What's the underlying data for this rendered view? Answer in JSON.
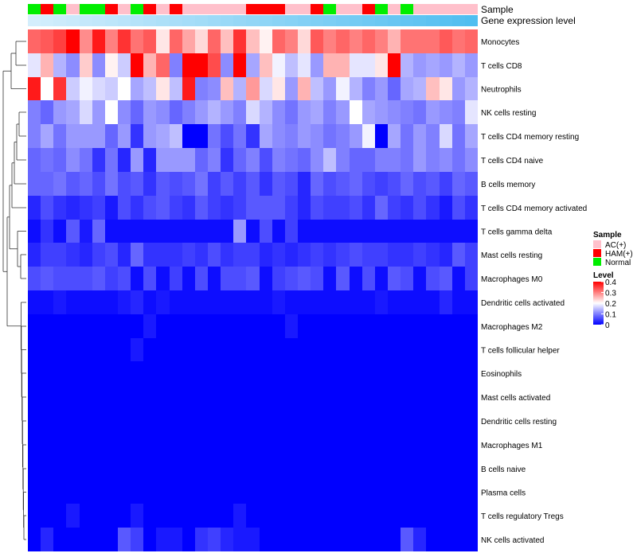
{
  "chart_data": {
    "type": "heatmap",
    "title": "",
    "xlabel": "",
    "ylabel": "",
    "annotation_tracks": [
      {
        "name": "Sample",
        "label": "Sample"
      },
      {
        "name": "Gene expression level",
        "label": "Gene expression level"
      }
    ],
    "sample_groups": [
      "Normal",
      "HAM(+)",
      "Normal",
      "AC(+)",
      "Normal",
      "Normal",
      "HAM(+)",
      "AC(+)",
      "Normal",
      "HAM(+)",
      "AC(+)",
      "HAM(+)",
      "AC(+)",
      "AC(+)",
      "AC(+)",
      "AC(+)",
      "AC(+)",
      "HAM(+)",
      "HAM(+)",
      "HAM(+)",
      "AC(+)",
      "AC(+)",
      "HAM(+)",
      "Normal",
      "AC(+)",
      "AC(+)",
      "HAM(+)",
      "Normal",
      "AC(+)",
      "Normal",
      "AC(+)",
      "AC(+)",
      "AC(+)",
      "AC(+)",
      "AC(+)"
    ],
    "expression_level_track": [
      0.55,
      0.56,
      0.57,
      0.58,
      0.59,
      0.6,
      0.61,
      0.62,
      0.63,
      0.64,
      0.65,
      0.66,
      0.67,
      0.68,
      0.69,
      0.7,
      0.71,
      0.72,
      0.73,
      0.74,
      0.75,
      0.76,
      0.77,
      0.78,
      0.79,
      0.8,
      0.81,
      0.82,
      0.83,
      0.84,
      0.85,
      0.86,
      0.87,
      0.88,
      0.89
    ],
    "rows": [
      "Monocytes",
      "T cells CD8",
      "Neutrophils",
      "NK cells resting",
      "T cells CD4 memory resting",
      "T cells CD4 naive",
      "B cells memory",
      "T cells CD4 memory activated",
      "T cells gamma delta",
      "Mast cells resting",
      "Macrophages M0",
      "Dendritic cells activated",
      "Macrophages M2",
      "T cells follicular helper",
      "Eosinophils",
      "Mast cells activated",
      "Dendritic cells resting",
      "Macrophages M1",
      "B cells naive",
      "Plasma cells",
      "T cells regulatory  Tregs",
      "NK cells activated"
    ],
    "values": [
      [
        0.32,
        0.33,
        0.35,
        0.4,
        0.29,
        0.38,
        0.3,
        0.36,
        0.31,
        0.33,
        0.22,
        0.32,
        0.27,
        0.23,
        0.32,
        0.25,
        0.36,
        0.25,
        0.21,
        0.32,
        0.3,
        0.23,
        0.33,
        0.3,
        0.32,
        0.3,
        0.32,
        0.3,
        0.26,
        0.31,
        0.31,
        0.31,
        0.33,
        0.31,
        0.32
      ],
      [
        0.18,
        0.26,
        0.14,
        0.11,
        0.24,
        0.11,
        0.21,
        0.16,
        0.4,
        0.26,
        0.32,
        0.1,
        0.4,
        0.4,
        0.34,
        0.11,
        0.4,
        0.13,
        0.25,
        0.19,
        0.15,
        0.18,
        0.12,
        0.26,
        0.26,
        0.18,
        0.18,
        0.22,
        0.4,
        0.14,
        0.12,
        0.13,
        0.12,
        0.14,
        0.12
      ],
      [
        0.38,
        0.2,
        0.36,
        0.16,
        0.19,
        0.17,
        0.16,
        0.2,
        0.13,
        0.15,
        0.22,
        0.15,
        0.38,
        0.1,
        0.11,
        0.25,
        0.14,
        0.28,
        0.17,
        0.22,
        0.12,
        0.26,
        0.15,
        0.12,
        0.19,
        0.14,
        0.1,
        0.12,
        0.08,
        0.13,
        0.14,
        0.25,
        0.22,
        0.12,
        0.14
      ],
      [
        0.1,
        0.08,
        0.12,
        0.13,
        0.17,
        0.12,
        0.2,
        0.11,
        0.08,
        0.12,
        0.11,
        0.08,
        0.1,
        0.12,
        0.14,
        0.12,
        0.1,
        0.17,
        0.14,
        0.11,
        0.09,
        0.12,
        0.13,
        0.1,
        0.12,
        0.2,
        0.13,
        0.12,
        0.11,
        0.1,
        0.09,
        0.12,
        0.11,
        0.1,
        0.18
      ],
      [
        0.1,
        0.13,
        0.09,
        0.12,
        0.12,
        0.12,
        0.08,
        0.12,
        0.04,
        0.12,
        0.13,
        0.15,
        0.0,
        0.0,
        0.09,
        0.06,
        0.09,
        0.04,
        0.13,
        0.11,
        0.1,
        0.12,
        0.11,
        0.09,
        0.1,
        0.12,
        0.19,
        0.0,
        0.13,
        0.09,
        0.12,
        0.1,
        0.17,
        0.09,
        0.13
      ],
      [
        0.08,
        0.09,
        0.08,
        0.11,
        0.09,
        0.04,
        0.09,
        0.03,
        0.12,
        0.03,
        0.12,
        0.12,
        0.12,
        0.08,
        0.1,
        0.04,
        0.08,
        0.1,
        0.06,
        0.1,
        0.09,
        0.08,
        0.11,
        0.15,
        0.1,
        0.08,
        0.08,
        0.1,
        0.1,
        0.09,
        0.12,
        0.1,
        0.11,
        0.09,
        0.11
      ],
      [
        0.08,
        0.08,
        0.09,
        0.07,
        0.08,
        0.06,
        0.09,
        0.06,
        0.07,
        0.04,
        0.07,
        0.06,
        0.07,
        0.09,
        0.05,
        0.07,
        0.05,
        0.07,
        0.04,
        0.07,
        0.06,
        0.03,
        0.08,
        0.06,
        0.07,
        0.08,
        0.06,
        0.05,
        0.06,
        0.08,
        0.06,
        0.07,
        0.05,
        0.08,
        0.07
      ],
      [
        0.03,
        0.06,
        0.04,
        0.03,
        0.04,
        0.05,
        0.02,
        0.06,
        0.04,
        0.06,
        0.07,
        0.05,
        0.04,
        0.07,
        0.05,
        0.04,
        0.05,
        0.07,
        0.07,
        0.07,
        0.05,
        0.03,
        0.06,
        0.05,
        0.05,
        0.06,
        0.04,
        0.08,
        0.05,
        0.04,
        0.06,
        0.04,
        0.02,
        0.06,
        0.04
      ],
      [
        0.01,
        0.04,
        0.01,
        0.07,
        0.02,
        0.08,
        0.01,
        0.01,
        0.01,
        0.01,
        0.01,
        0.01,
        0.01,
        0.01,
        0.01,
        0.01,
        0.12,
        0.01,
        0.06,
        0.01,
        0.05,
        0.01,
        0.01,
        0.01,
        0.01,
        0.01,
        0.01,
        0.01,
        0.01,
        0.01,
        0.01,
        0.01,
        0.01,
        0.01,
        0.01
      ],
      [
        0.03,
        0.05,
        0.05,
        0.04,
        0.03,
        0.05,
        0.06,
        0.03,
        0.08,
        0.04,
        0.04,
        0.04,
        0.05,
        0.04,
        0.06,
        0.04,
        0.05,
        0.05,
        0.03,
        0.04,
        0.03,
        0.04,
        0.05,
        0.04,
        0.05,
        0.06,
        0.05,
        0.05,
        0.04,
        0.04,
        0.05,
        0.04,
        0.03,
        0.07,
        0.05
      ],
      [
        0.06,
        0.07,
        0.06,
        0.06,
        0.06,
        0.07,
        0.05,
        0.06,
        0.01,
        0.06,
        0.01,
        0.05,
        0.01,
        0.06,
        0.01,
        0.06,
        0.06,
        0.07,
        0.01,
        0.05,
        0.06,
        0.07,
        0.06,
        0.01,
        0.07,
        0.01,
        0.06,
        0.01,
        0.07,
        0.06,
        0.01,
        0.06,
        0.07,
        0.01,
        0.05
      ],
      [
        0.01,
        0.01,
        0.02,
        0.01,
        0.01,
        0.01,
        0.01,
        0.02,
        0.03,
        0.01,
        0.02,
        0.01,
        0.01,
        0.01,
        0.01,
        0.01,
        0.01,
        0.01,
        0.01,
        0.02,
        0.01,
        0.01,
        0.01,
        0.01,
        0.01,
        0.01,
        0.01,
        0.02,
        0.01,
        0.01,
        0.01,
        0.01,
        0.03,
        0.01,
        0.01
      ],
      [
        0.0,
        0.0,
        0.0,
        0.0,
        0.0,
        0.0,
        0.0,
        0.0,
        0.0,
        0.02,
        0.0,
        0.0,
        0.0,
        0.0,
        0.0,
        0.0,
        0.0,
        0.0,
        0.0,
        0.0,
        0.02,
        0.0,
        0.0,
        0.0,
        0.0,
        0.0,
        0.0,
        0.0,
        0.0,
        0.0,
        0.0,
        0.0,
        0.0,
        0.0,
        0.0
      ],
      [
        0.0,
        0.0,
        0.0,
        0.0,
        0.0,
        0.0,
        0.0,
        0.0,
        0.02,
        0.0,
        0.0,
        0.0,
        0.0,
        0.0,
        0.0,
        0.0,
        0.0,
        0.0,
        0.0,
        0.0,
        0.0,
        0.0,
        0.0,
        0.0,
        0.0,
        0.0,
        0.0,
        0.0,
        0.0,
        0.0,
        0.0,
        0.0,
        0.0,
        0.0,
        0.0
      ],
      [
        0.0,
        0.0,
        0.0,
        0.0,
        0.0,
        0.0,
        0.0,
        0.0,
        0.0,
        0.0,
        0.0,
        0.0,
        0.0,
        0.0,
        0.0,
        0.0,
        0.0,
        0.0,
        0.0,
        0.0,
        0.0,
        0.0,
        0.0,
        0.0,
        0.0,
        0.0,
        0.0,
        0.0,
        0.0,
        0.0,
        0.0,
        0.0,
        0.0,
        0.0,
        0.0
      ],
      [
        0.0,
        0.0,
        0.0,
        0.0,
        0.0,
        0.0,
        0.0,
        0.0,
        0.0,
        0.0,
        0.0,
        0.0,
        0.0,
        0.0,
        0.0,
        0.0,
        0.0,
        0.0,
        0.0,
        0.0,
        0.0,
        0.0,
        0.0,
        0.0,
        0.0,
        0.0,
        0.0,
        0.0,
        0.0,
        0.0,
        0.0,
        0.0,
        0.0,
        0.0,
        0.0
      ],
      [
        0.0,
        0.0,
        0.0,
        0.0,
        0.0,
        0.0,
        0.0,
        0.0,
        0.0,
        0.0,
        0.0,
        0.0,
        0.0,
        0.0,
        0.0,
        0.0,
        0.0,
        0.0,
        0.0,
        0.0,
        0.0,
        0.0,
        0.0,
        0.0,
        0.0,
        0.0,
        0.0,
        0.0,
        0.0,
        0.0,
        0.0,
        0.0,
        0.0,
        0.0,
        0.0
      ],
      [
        0.0,
        0.0,
        0.0,
        0.0,
        0.0,
        0.0,
        0.0,
        0.0,
        0.0,
        0.0,
        0.0,
        0.0,
        0.0,
        0.0,
        0.0,
        0.0,
        0.0,
        0.0,
        0.0,
        0.0,
        0.0,
        0.0,
        0.0,
        0.0,
        0.0,
        0.0,
        0.0,
        0.0,
        0.0,
        0.0,
        0.0,
        0.0,
        0.0,
        0.0,
        0.0
      ],
      [
        0.0,
        0.0,
        0.0,
        0.0,
        0.0,
        0.0,
        0.0,
        0.0,
        0.0,
        0.0,
        0.0,
        0.0,
        0.0,
        0.0,
        0.0,
        0.0,
        0.0,
        0.0,
        0.0,
        0.0,
        0.0,
        0.0,
        0.0,
        0.0,
        0.0,
        0.0,
        0.0,
        0.0,
        0.0,
        0.0,
        0.0,
        0.0,
        0.0,
        0.0,
        0.0
      ],
      [
        0.0,
        0.0,
        0.0,
        0.0,
        0.0,
        0.0,
        0.0,
        0.0,
        0.0,
        0.0,
        0.0,
        0.0,
        0.0,
        0.0,
        0.0,
        0.0,
        0.0,
        0.0,
        0.0,
        0.0,
        0.0,
        0.0,
        0.0,
        0.0,
        0.0,
        0.0,
        0.0,
        0.0,
        0.0,
        0.0,
        0.0,
        0.0,
        0.0,
        0.0,
        0.0
      ],
      [
        0.0,
        0.0,
        0.0,
        0.02,
        0.0,
        0.0,
        0.0,
        0.0,
        0.02,
        0.0,
        0.0,
        0.0,
        0.0,
        0.0,
        0.0,
        0.0,
        0.02,
        0.0,
        0.0,
        0.0,
        0.0,
        0.0,
        0.0,
        0.0,
        0.0,
        0.0,
        0.0,
        0.0,
        0.0,
        0.0,
        0.0,
        0.0,
        0.0,
        0.0,
        0.0
      ],
      [
        0.0,
        0.03,
        0.0,
        0.0,
        0.0,
        0.0,
        0.0,
        0.07,
        0.05,
        0.0,
        0.02,
        0.02,
        0.0,
        0.04,
        0.05,
        0.03,
        0.02,
        0.02,
        0.0,
        0.0,
        0.0,
        0.0,
        0.0,
        0.0,
        0.0,
        0.0,
        0.0,
        0.0,
        0.0,
        0.07,
        0.03,
        0.0,
        0.0,
        0.0,
        0.0
      ]
    ],
    "legend": {
      "sample_title": "Sample",
      "sample_entries": [
        {
          "label": "AC(+)",
          "color": "#FFC0CB"
        },
        {
          "label": "HAM(+)",
          "color": "#FF0000"
        },
        {
          "label": "Normal",
          "color": "#00EE00"
        }
      ],
      "level_title": "Level",
      "level_ticks": [
        "0.4",
        "0.3",
        "0.2",
        "0.1",
        "0"
      ],
      "level_range": [
        0,
        0.4
      ]
    }
  },
  "colors": {
    "low": "#0000FF",
    "mid": "#FFFFFF",
    "high": "#FF0000",
    "expression_track": "#87CEFA"
  }
}
